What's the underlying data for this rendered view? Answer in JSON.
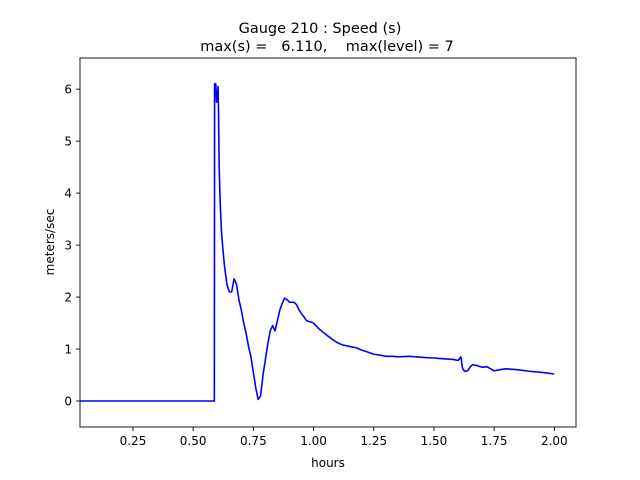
{
  "chart_data": {
    "type": "line",
    "title": "Gauge 210 : Speed (s)",
    "subtitle": "max(s) =   6.110,    max(level) = 7",
    "xlabel": "hours",
    "ylabel": "meters/sec",
    "xlim": [
      0.03,
      2.09
    ],
    "ylim": [
      -0.5,
      6.6
    ],
    "xticks": [
      0.25,
      0.5,
      0.75,
      1.0,
      1.25,
      1.5,
      1.75,
      2.0
    ],
    "xtick_labels": [
      "0.25",
      "0.50",
      "0.75",
      "1.00",
      "1.25",
      "1.50",
      "1.75",
      "2.00"
    ],
    "yticks": [
      0,
      1,
      2,
      3,
      4,
      5,
      6
    ],
    "ytick_labels": [
      "0",
      "1",
      "2",
      "3",
      "4",
      "5",
      "6"
    ],
    "grid": false,
    "line_color": "#0000ff",
    "series": [
      {
        "x": [
          0.03,
          0.588,
          0.589,
          0.591,
          0.594,
          0.597,
          0.6,
          0.603,
          0.605,
          0.608,
          0.612,
          0.617,
          0.622,
          0.63,
          0.64,
          0.65,
          0.66,
          0.67,
          0.68,
          0.69,
          0.7,
          0.71,
          0.72,
          0.73,
          0.74,
          0.75,
          0.76,
          0.77,
          0.78,
          0.785,
          0.79,
          0.8,
          0.81,
          0.82,
          0.83,
          0.84,
          0.85,
          0.86,
          0.87,
          0.88,
          0.89,
          0.9,
          0.91,
          0.92,
          0.93,
          0.94,
          0.95,
          0.96,
          0.97,
          0.98,
          0.99,
          1.0,
          1.02,
          1.04,
          1.06,
          1.08,
          1.1,
          1.12,
          1.15,
          1.18,
          1.2,
          1.22,
          1.25,
          1.28,
          1.3,
          1.33,
          1.35,
          1.4,
          1.42,
          1.45,
          1.48,
          1.5,
          1.52,
          1.55,
          1.58,
          1.6,
          1.612,
          1.618,
          1.622,
          1.63,
          1.64,
          1.65,
          1.66,
          1.68,
          1.7,
          1.72,
          1.735,
          1.75,
          1.77,
          1.8,
          1.85,
          1.9,
          1.95,
          2.0
        ],
        "y": [
          0.0,
          0.0,
          6.11,
          5.95,
          6.1,
          5.75,
          5.8,
          6.05,
          5.7,
          4.5,
          3.85,
          3.3,
          3.0,
          2.6,
          2.25,
          2.1,
          2.1,
          2.35,
          2.25,
          1.95,
          1.75,
          1.5,
          1.3,
          1.05,
          0.85,
          0.55,
          0.25,
          0.03,
          0.1,
          0.3,
          0.5,
          0.8,
          1.1,
          1.35,
          1.45,
          1.35,
          1.55,
          1.75,
          1.88,
          1.98,
          1.95,
          1.9,
          1.9,
          1.9,
          1.85,
          1.75,
          1.68,
          1.62,
          1.55,
          1.53,
          1.52,
          1.5,
          1.4,
          1.32,
          1.25,
          1.18,
          1.12,
          1.08,
          1.05,
          1.02,
          0.98,
          0.95,
          0.9,
          0.88,
          0.86,
          0.86,
          0.85,
          0.86,
          0.85,
          0.84,
          0.83,
          0.83,
          0.82,
          0.81,
          0.8,
          0.78,
          0.85,
          0.65,
          0.6,
          0.57,
          0.58,
          0.65,
          0.7,
          0.68,
          0.65,
          0.66,
          0.62,
          0.58,
          0.6,
          0.62,
          0.6,
          0.57,
          0.55,
          0.52
        ]
      }
    ]
  }
}
